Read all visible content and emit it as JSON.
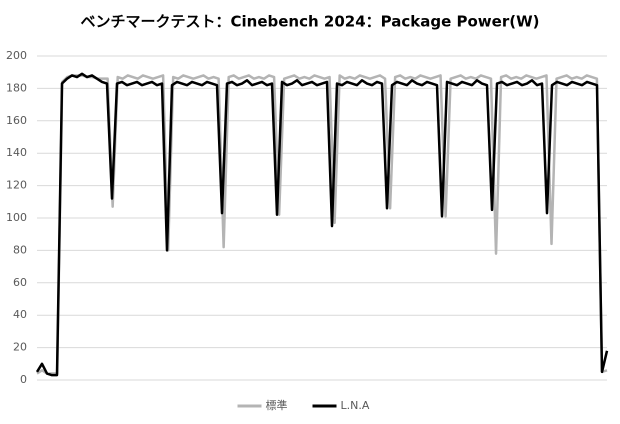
{
  "chart_data": {
    "type": "line",
    "title": "ベンチマークテスト：Cinebench 2024：Package Power(W)",
    "ylim": [
      0,
      200
    ],
    "yticks": [
      0,
      20,
      40,
      60,
      80,
      100,
      120,
      140,
      160,
      180,
      200
    ],
    "grid": true,
    "legend": "bottom",
    "series": [
      {
        "name": "標準",
        "color": "#b4b4b4",
        "values": [
          4,
          6,
          4,
          4,
          4,
          184,
          187,
          188,
          188,
          188,
          187,
          187,
          186,
          186,
          186,
          107,
          187,
          186,
          188,
          187,
          186,
          188,
          187,
          186,
          187,
          188,
          80,
          187,
          186,
          188,
          187,
          186,
          187,
          188,
          186,
          187,
          186,
          82,
          187,
          188,
          186,
          187,
          188,
          186,
          187,
          186,
          188,
          187,
          102,
          186,
          187,
          188,
          186,
          187,
          186,
          188,
          187,
          186,
          187,
          97,
          188,
          186,
          187,
          186,
          188,
          187,
          186,
          187,
          188,
          186,
          106,
          187,
          188,
          186,
          187,
          186,
          188,
          187,
          186,
          187,
          188,
          101,
          186,
          187,
          188,
          186,
          187,
          186,
          188,
          187,
          186,
          78,
          187,
          188,
          186,
          187,
          186,
          188,
          187,
          186,
          187,
          188,
          84,
          186,
          187,
          188,
          186,
          187,
          186,
          188,
          187,
          186,
          5,
          6
        ]
      },
      {
        "name": "L.N.A",
        "color": "#000000",
        "values": [
          5,
          10,
          4,
          3,
          3,
          183,
          186,
          188,
          187,
          189,
          187,
          188,
          186,
          184,
          183,
          112,
          183,
          184,
          182,
          183,
          184,
          182,
          183,
          184,
          182,
          183,
          80,
          182,
          184,
          183,
          182,
          184,
          183,
          182,
          184,
          183,
          182,
          103,
          183,
          184,
          182,
          183,
          185,
          182,
          183,
          184,
          182,
          183,
          102,
          184,
          182,
          183,
          185,
          182,
          183,
          184,
          182,
          183,
          184,
          95,
          183,
          182,
          184,
          183,
          182,
          185,
          183,
          182,
          184,
          183,
          106,
          182,
          184,
          183,
          182,
          185,
          183,
          182,
          184,
          183,
          182,
          101,
          184,
          183,
          182,
          184,
          183,
          182,
          185,
          183,
          182,
          105,
          183,
          184,
          182,
          183,
          184,
          182,
          183,
          185,
          182,
          183,
          103,
          182,
          184,
          183,
          182,
          184,
          183,
          182,
          184,
          183,
          182,
          5,
          18
        ]
      }
    ]
  }
}
